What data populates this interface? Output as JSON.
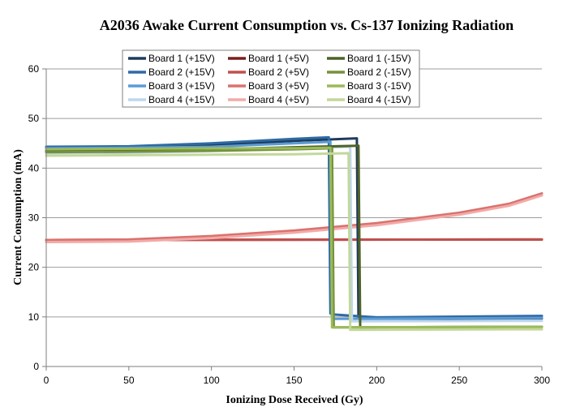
{
  "chart_data": {
    "type": "line",
    "title": "A2036 Awake Current Consumption vs. Cs-137 Ionizing Radiation",
    "xlabel": "Ionizing Dose Received (Gy)",
    "ylabel": "Current Consumption (mA)",
    "xlim": [
      0,
      300
    ],
    "ylim": [
      0,
      60
    ],
    "xticks": [
      0,
      50,
      100,
      150,
      200,
      250,
      300
    ],
    "yticks": [
      0,
      10,
      20,
      30,
      40,
      50,
      60
    ],
    "grid": "horizontal",
    "legend_position": "top-center",
    "series": [
      {
        "name": "Board 1 (+15V)",
        "color": "#1f3b5c",
        "width": 3,
        "x": [
          0,
          50,
          100,
          150,
          188,
          189,
          300
        ],
        "y": [
          44.0,
          44.1,
          44.6,
          45.5,
          46.0,
          9.6,
          9.7
        ]
      },
      {
        "name": "Board 1 (+5V)",
        "color": "#7a1f1f",
        "width": 3,
        "x": [
          0,
          300
        ],
        "y": [
          25.5,
          25.6
        ]
      },
      {
        "name": "Board 1 (-15V)",
        "color": "#4f6228",
        "width": 3,
        "x": [
          0,
          50,
          100,
          150,
          189,
          190,
          300
        ],
        "y": [
          43.5,
          43.6,
          43.8,
          44.2,
          44.5,
          7.9,
          8.0
        ]
      },
      {
        "name": "Board 2 (+15V)",
        "color": "#2e6aa4",
        "width": 3,
        "x": [
          0,
          50,
          100,
          150,
          171,
          172,
          173,
          195,
          200,
          300
        ],
        "y": [
          44.3,
          44.4,
          45.0,
          45.9,
          46.2,
          10.7,
          10.5,
          10.0,
          9.9,
          10.2
        ]
      },
      {
        "name": "Board 2 (+5V)",
        "color": "#c0504d",
        "width": 3,
        "x": [
          0,
          300
        ],
        "y": [
          25.5,
          25.6
        ]
      },
      {
        "name": "Board 2 (-15V)",
        "color": "#76923c",
        "width": 3,
        "x": [
          0,
          50,
          100,
          150,
          173,
          174,
          300
        ],
        "y": [
          43.2,
          43.3,
          43.5,
          43.8,
          44.0,
          7.9,
          8.0
        ]
      },
      {
        "name": "Board 3 (+15V)",
        "color": "#5b9bd5",
        "width": 3,
        "x": [
          0,
          50,
          100,
          150,
          172,
          173,
          300
        ],
        "y": [
          44.0,
          44.1,
          44.3,
          45.0,
          45.3,
          9.6,
          9.8
        ]
      },
      {
        "name": "Board 3 (+5V)",
        "color": "#d9726e",
        "width": 3,
        "x": [
          0,
          50,
          100,
          150,
          200,
          250,
          280,
          300
        ],
        "y": [
          25.5,
          25.6,
          26.3,
          27.4,
          28.9,
          31.0,
          32.8,
          34.9
        ]
      },
      {
        "name": "Board 3 (-15V)",
        "color": "#9bbb59",
        "width": 3,
        "x": [
          0,
          50,
          100,
          150,
          172,
          173,
          300
        ],
        "y": [
          43.8,
          43.9,
          44.0,
          44.0,
          44.1,
          7.9,
          8.0
        ]
      },
      {
        "name": "Board 4 (+15V)",
        "color": "#bdd7ee",
        "width": 3,
        "x": [
          0,
          50,
          100,
          150,
          184,
          185,
          300
        ],
        "y": [
          43.0,
          43.1,
          43.4,
          43.9,
          44.3,
          9.1,
          9.2
        ]
      },
      {
        "name": "Board 4 (+5V)",
        "color": "#f2aaa8",
        "width": 3,
        "x": [
          0,
          50,
          100,
          150,
          200,
          250,
          280,
          300
        ],
        "y": [
          25.1,
          25.2,
          25.9,
          27.0,
          28.5,
          30.6,
          32.4,
          34.5
        ]
      },
      {
        "name": "Board 4 (-15V)",
        "color": "#c4d79b",
        "width": 3,
        "x": [
          0,
          50,
          100,
          150,
          183,
          184,
          300
        ],
        "y": [
          42.5,
          42.6,
          42.7,
          42.8,
          43.0,
          7.4,
          7.5
        ]
      }
    ]
  }
}
